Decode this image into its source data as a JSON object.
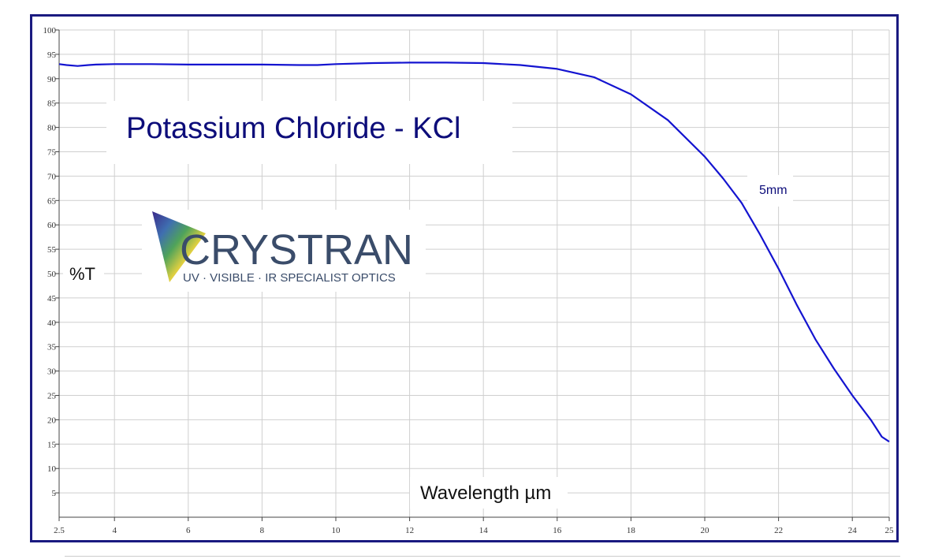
{
  "chart_data": {
    "type": "line",
    "title": "Potassium Chloride - KCl",
    "xlabel": "Wavelength µm",
    "ylabel": "%T",
    "xlim": [
      2.5,
      25
    ],
    "ylim": [
      0,
      100
    ],
    "x_ticks": [
      "2.5",
      "4",
      "6",
      "8",
      "10",
      "12",
      "14",
      "16",
      "18",
      "20",
      "22",
      "24",
      "25"
    ],
    "x_tick_values": [
      2.5,
      4,
      6,
      8,
      10,
      12,
      14,
      16,
      18,
      20,
      22,
      24,
      25
    ],
    "y_ticks": [
      "5",
      "10",
      "15",
      "20",
      "25",
      "30",
      "35",
      "40",
      "45",
      "50",
      "55",
      "60",
      "65",
      "70",
      "75",
      "80",
      "85",
      "90",
      "95",
      "100"
    ],
    "y_tick_values": [
      5,
      10,
      15,
      20,
      25,
      30,
      35,
      40,
      45,
      50,
      55,
      60,
      65,
      70,
      75,
      80,
      85,
      90,
      95,
      100
    ],
    "grid": true,
    "line_color": "#1414d0",
    "series": [
      {
        "x": [
          2.5,
          2.7,
          3.0,
          3.3,
          3.5,
          4.0,
          5.0,
          6.0,
          7.0,
          8.0,
          9.0,
          9.5,
          10.0,
          11.0,
          12.0,
          13.0,
          14.0,
          15.0,
          16.0,
          17.0,
          18.0,
          19.0,
          20.0,
          20.5,
          21.0,
          21.5,
          22.0,
          22.5,
          23.0,
          23.5,
          24.0,
          24.5,
          24.8,
          25.0
        ],
        "y": [
          93.0,
          92.8,
          92.6,
          92.8,
          92.9,
          93.0,
          93.0,
          92.9,
          92.9,
          92.9,
          92.8,
          92.8,
          93.0,
          93.2,
          93.3,
          93.3,
          93.2,
          92.8,
          92.0,
          90.3,
          86.8,
          81.5,
          74.0,
          69.5,
          64.5,
          58.0,
          51.0,
          43.5,
          36.5,
          30.5,
          25.0,
          20.0,
          16.5,
          15.5
        ]
      }
    ],
    "annotations": [
      {
        "text": "5mm",
        "x": 21.9,
        "y": 66
      }
    ]
  },
  "logo": {
    "name": "CRYSTRAN",
    "tagline": "UV · VISIBLE · IR SPECIALIST OPTICS",
    "icon": "prism-triangle-icon"
  }
}
